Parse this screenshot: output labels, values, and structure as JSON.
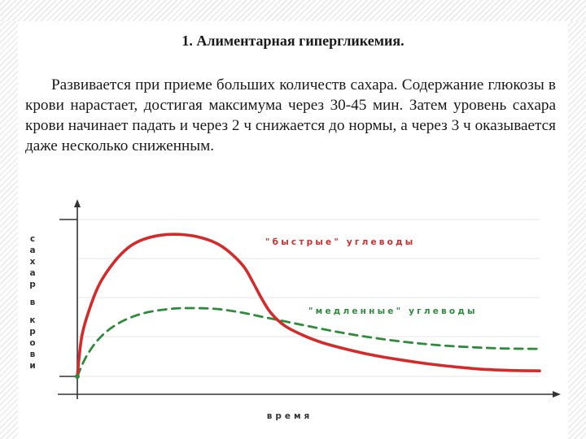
{
  "slide": {
    "heading": "1. Алиментарная гипергликемия.",
    "paragraph": "Развивается при приеме больших количеств сахара. Содержание глюкозы в крови нарастает, достигая максимума через 30-45 мин. Затем уровень сахара крови начинает падать и через 2 ч снижается до нормы, а через 3 ч оказывается даже несколько сниженным."
  },
  "chart_data": {
    "type": "line",
    "xlabel": "время",
    "ylabel": "сахар в крови",
    "xlim": [
      0,
      10
    ],
    "ylim": [
      0,
      10
    ],
    "grid": true,
    "series": [
      {
        "name": "\"быстрые\" углеводы",
        "style": "solid",
        "color": "#d42a2a",
        "x": [
          0,
          0.1,
          0.3,
          0.5,
          0.8,
          1.1,
          1.4,
          1.8,
          2.2,
          2.6,
          3.0,
          3.3,
          3.6,
          3.8,
          4.0,
          4.2,
          4.5,
          4.9,
          5.3,
          5.8,
          6.4,
          7.0,
          7.6,
          8.2,
          8.8,
          9.4,
          10
        ],
        "values": [
          0,
          2.6,
          4.6,
          6.0,
          7.3,
          8.2,
          8.7,
          9.0,
          9.05,
          8.9,
          8.5,
          7.9,
          7.0,
          6.0,
          4.9,
          4.0,
          3.2,
          2.6,
          2.15,
          1.75,
          1.35,
          1.05,
          0.8,
          0.6,
          0.45,
          0.38,
          0.35
        ]
      },
      {
        "name": "\"медленные\" углеводы",
        "style": "dashed",
        "color": "#2e8b3c",
        "x": [
          0,
          0.2,
          0.5,
          0.9,
          1.4,
          2.0,
          2.5,
          3.0,
          3.5,
          4.0,
          4.5,
          5.0,
          5.6,
          6.2,
          6.8,
          7.4,
          8.0,
          8.6,
          9.2,
          10
        ],
        "values": [
          0,
          1.3,
          2.5,
          3.4,
          4.0,
          4.3,
          4.35,
          4.3,
          4.1,
          3.8,
          3.5,
          3.2,
          2.85,
          2.55,
          2.3,
          2.1,
          1.95,
          1.85,
          1.78,
          1.75
        ]
      }
    ],
    "annotations": [
      "\"быстрые\" углеводы",
      "\"медленные\" углеводы"
    ]
  }
}
